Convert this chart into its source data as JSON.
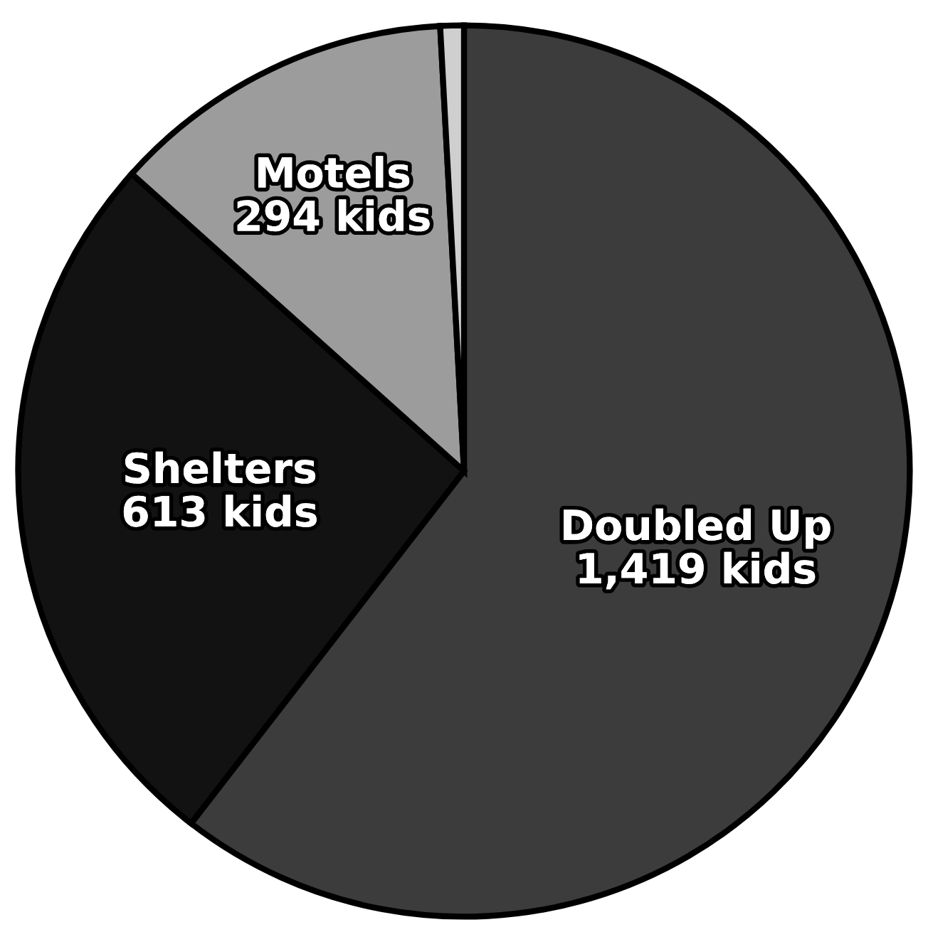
{
  "chart_data": {
    "type": "pie",
    "categories": [
      "Doubled Up",
      "Shelters",
      "Motels",
      null
    ],
    "values": [
      1419,
      613,
      294,
      20
    ],
    "value_labels": [
      "1,419 kids",
      "613 kids",
      "294 kids",
      null
    ],
    "colors": [
      "#3c3c3c",
      "#121212",
      "#9c9c9c",
      "#cfcfcf"
    ]
  }
}
